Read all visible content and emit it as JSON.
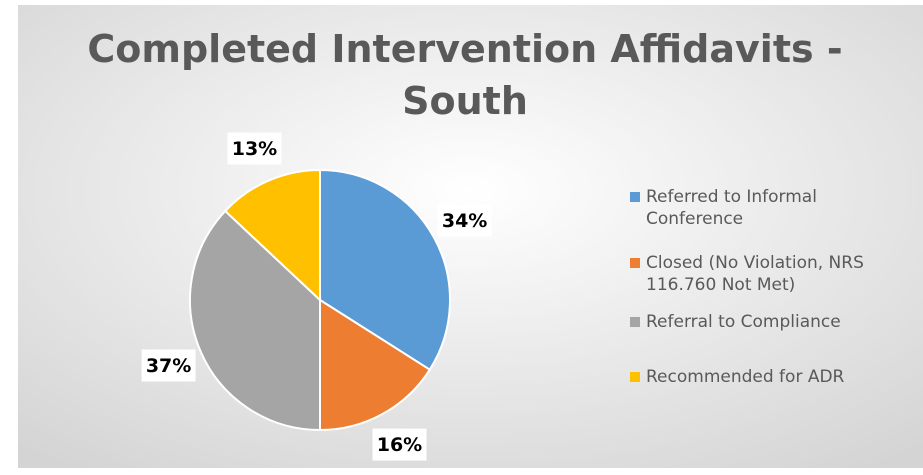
{
  "chart_data": {
    "type": "pie",
    "title": "Completed Intervention Affidavits - South",
    "categories": [
      "Referred to Informal Conference",
      "Closed (No Violation, NRS 116.760 Not Met)",
      "Referral to Compliance",
      "Recommended for ADR"
    ],
    "values": [
      34,
      16,
      37,
      13
    ],
    "value_labels": [
      "34%",
      "16%",
      "37%",
      "13%"
    ],
    "colors": [
      "#5b9bd5",
      "#ed7d31",
      "#a5a5a5",
      "#ffc000"
    ],
    "legend": "right"
  }
}
